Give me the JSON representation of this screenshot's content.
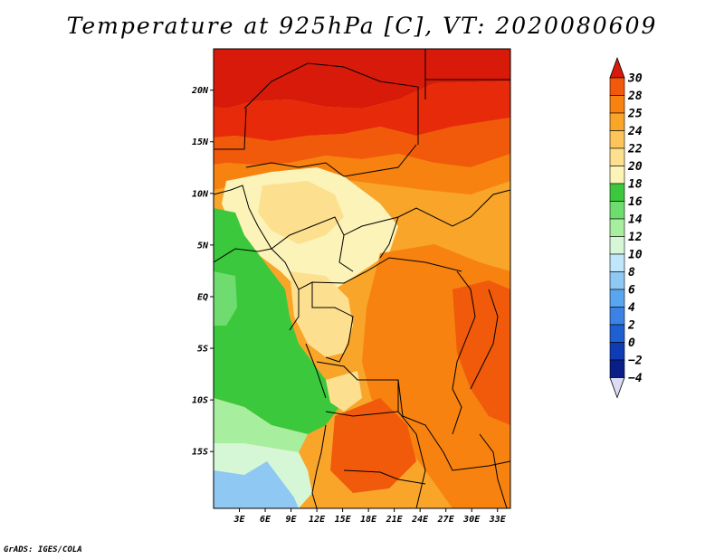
{
  "title": "Temperature at 925hPa [C], VT: 2020080609",
  "credit": "GrADS: IGES/COLA",
  "map": {
    "lon_range": [
      0,
      34.5
    ],
    "lat_range": [
      -20.5,
      24
    ],
    "lat_ticks": [
      {
        "value": 20,
        "label": "20N"
      },
      {
        "value": 15,
        "label": "15N"
      },
      {
        "value": 10,
        "label": "10N"
      },
      {
        "value": 5,
        "label": "5N"
      },
      {
        "value": 0,
        "label": "EQ"
      },
      {
        "value": -5,
        "label": "5S"
      },
      {
        "value": -10,
        "label": "10S"
      },
      {
        "value": -15,
        "label": "15S"
      }
    ],
    "lon_ticks": [
      {
        "value": 3,
        "label": "3E"
      },
      {
        "value": 6,
        "label": "6E"
      },
      {
        "value": 9,
        "label": "9E"
      },
      {
        "value": 12,
        "label": "12E"
      },
      {
        "value": 15,
        "label": "15E"
      },
      {
        "value": 18,
        "label": "18E"
      },
      {
        "value": 21,
        "label": "21E"
      },
      {
        "value": 24,
        "label": "24E"
      },
      {
        "value": 27,
        "label": "27E"
      },
      {
        "value": 30,
        "label": "30E"
      },
      {
        "value": 33,
        "label": "33E"
      }
    ]
  },
  "colorbar": {
    "levels": [
      "30",
      "28",
      "25",
      "24",
      "22",
      "20",
      "18",
      "16",
      "14",
      "12",
      "10",
      "8",
      "6",
      "4",
      "2",
      "0",
      "−2",
      "−4"
    ],
    "colors": [
      "#e62a0a",
      "#f05a0a",
      "#f7820f",
      "#f8a52a",
      "#fbc55a",
      "#fde08f",
      "#fbf3b8",
      "#3cc83c",
      "#6fdc6f",
      "#a8ee9f",
      "#d6f7d6",
      "#bfe6fb",
      "#8fc8f3",
      "#5aa5ef",
      "#3c82e6",
      "#1e5fd2",
      "#0f3cb4",
      "#0a1e87",
      "#000f50"
    ],
    "top_color": "#d81a0a",
    "bottom_color": "#dcdcf5"
  }
}
